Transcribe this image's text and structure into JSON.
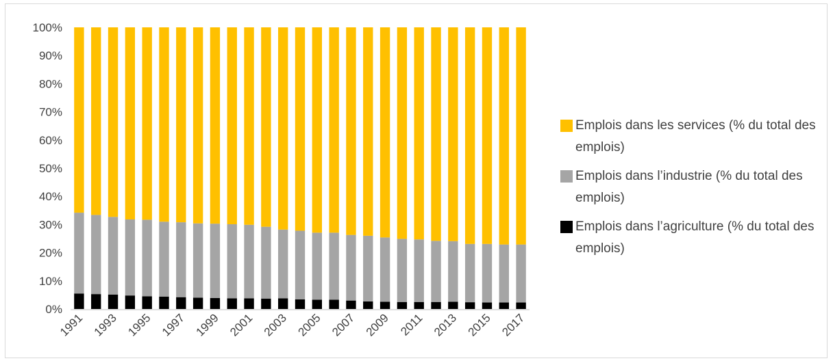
{
  "chart_data": {
    "type": "bar",
    "stacked": true,
    "percent": true,
    "categories": [
      "1991",
      "1992",
      "1993",
      "1994",
      "1995",
      "1996",
      "1997",
      "1998",
      "1999",
      "2000",
      "2001",
      "2002",
      "2003",
      "2004",
      "2005",
      "2006",
      "2007",
      "2008",
      "2009",
      "2010",
      "2011",
      "2012",
      "2013",
      "2014",
      "2015",
      "2016",
      "2017"
    ],
    "x_tick_labels": [
      "1991",
      "1993",
      "1995",
      "1997",
      "1999",
      "2001",
      "2003",
      "2005",
      "2007",
      "2009",
      "2011",
      "2013",
      "2015",
      "2017"
    ],
    "y_tick_labels": [
      "0%",
      "10%",
      "20%",
      "30%",
      "40%",
      "50%",
      "60%",
      "70%",
      "80%",
      "90%",
      "100%"
    ],
    "ylim": [
      0,
      100
    ],
    "grid": false,
    "legend_position": "right",
    "series": [
      {
        "name": "Emplois dans l’agriculture (% du total des emplois)",
        "color": "#000000",
        "values": [
          5.5,
          5.3,
          5.1,
          4.8,
          4.5,
          4.4,
          4.2,
          4.0,
          3.9,
          3.8,
          3.8,
          3.7,
          3.8,
          3.4,
          3.3,
          3.3,
          3.0,
          2.7,
          2.6,
          2.5,
          2.5,
          2.5,
          2.6,
          2.4,
          2.3,
          2.3,
          2.3
        ]
      },
      {
        "name": "Emplois dans l’industrie (% du total des emplois)",
        "color": "#a5a5a5",
        "values": [
          28.7,
          28.1,
          27.6,
          27.0,
          27.2,
          26.6,
          26.6,
          26.4,
          26.4,
          26.3,
          26.1,
          25.5,
          24.4,
          24.4,
          23.8,
          23.8,
          23.3,
          23.3,
          22.8,
          22.4,
          22.2,
          21.7,
          21.5,
          20.7,
          20.8,
          20.6,
          20.6
        ]
      },
      {
        "name": "Emplois dans les services (% du total des emplois)",
        "color": "#ffc000",
        "values": [
          65.8,
          66.6,
          67.3,
          68.2,
          68.3,
          69.0,
          69.2,
          69.6,
          69.7,
          69.9,
          70.1,
          70.8,
          71.8,
          72.2,
          72.9,
          72.9,
          73.7,
          74.0,
          74.6,
          75.1,
          75.3,
          75.8,
          75.9,
          76.9,
          76.9,
          77.1,
          77.1
        ]
      }
    ],
    "legend": [
      {
        "label": "Emplois dans les services (% du total des emplois)",
        "color": "#ffc000"
      },
      {
        "label": "Emplois dans l’industrie (% du total des emplois)",
        "color": "#a5a5a5"
      },
      {
        "label": "Emplois dans l’agriculture (% du total des emplois)",
        "color": "#000000"
      }
    ]
  }
}
